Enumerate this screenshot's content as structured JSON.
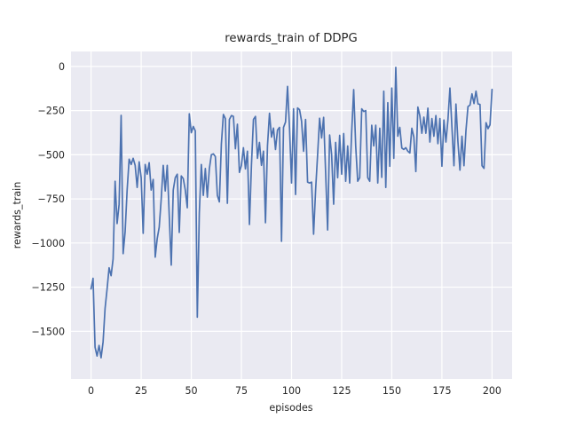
{
  "figure": {
    "background": "#ffffff"
  },
  "chart_data": {
    "type": "line",
    "title": "rewards_train of DDPG",
    "xlabel": "episodes",
    "ylabel": "rewards_train",
    "series_name": "rewards_train",
    "x_start": 0,
    "x_step": 1,
    "values": [
      -1260,
      -1200,
      -1590,
      -1640,
      -1580,
      -1650,
      -1560,
      -1370,
      -1260,
      -1140,
      -1185,
      -1090,
      -650,
      -890,
      -780,
      -277,
      -1060,
      -935,
      -700,
      -525,
      -555,
      -520,
      -560,
      -685,
      -540,
      -630,
      -945,
      -555,
      -610,
      -545,
      -700,
      -640,
      -1080,
      -975,
      -910,
      -750,
      -560,
      -705,
      -560,
      -845,
      -1125,
      -700,
      -630,
      -610,
      -940,
      -620,
      -635,
      -700,
      -800,
      -268,
      -375,
      -340,
      -365,
      -1420,
      -830,
      -555,
      -730,
      -578,
      -740,
      -580,
      -500,
      -495,
      -510,
      -730,
      -767,
      -440,
      -272,
      -295,
      -775,
      -300,
      -278,
      -283,
      -466,
      -327,
      -600,
      -560,
      -460,
      -580,
      -480,
      -895,
      -560,
      -300,
      -283,
      -520,
      -430,
      -560,
      -480,
      -885,
      -450,
      -265,
      -400,
      -349,
      -470,
      -360,
      -345,
      -990,
      -345,
      -315,
      -113,
      -350,
      -660,
      -240,
      -725,
      -235,
      -245,
      -310,
      -480,
      -300,
      -655,
      -660,
      -655,
      -950,
      -700,
      -500,
      -293,
      -405,
      -288,
      -600,
      -926,
      -388,
      -500,
      -780,
      -430,
      -630,
      -390,
      -610,
      -380,
      -650,
      -450,
      -660,
      -370,
      -131,
      -450,
      -650,
      -630,
      -240,
      -255,
      -250,
      -630,
      -650,
      -333,
      -450,
      -333,
      -660,
      -350,
      -628,
      -140,
      -685,
      -205,
      -565,
      -122,
      -520,
      -5,
      -395,
      -345,
      -462,
      -470,
      -460,
      -480,
      -490,
      -350,
      -400,
      -595,
      -230,
      -280,
      -378,
      -287,
      -378,
      -236,
      -428,
      -295,
      -395,
      -278,
      -437,
      -295,
      -565,
      -303,
      -428,
      -303,
      -122,
      -345,
      -562,
      -213,
      -428,
      -587,
      -395,
      -562,
      -362,
      -227,
      -219,
      -155,
      -210,
      -140,
      -212,
      -215,
      -562,
      -577,
      -318,
      -352,
      -330,
      -130
    ],
    "xticks": [
      0,
      25,
      50,
      75,
      100,
      125,
      150,
      175,
      200
    ],
    "yticks": [
      0,
      -250,
      -500,
      -750,
      -1000,
      -1250,
      -1500
    ],
    "xlim": [
      -10,
      210
    ],
    "ylim": [
      -1770,
      85
    ],
    "grid": true,
    "legend_position": "none",
    "line_color": "#4c72b0",
    "axes_background": "#eaeaf2",
    "grid_color": "#ffffff",
    "text_color": "#262626"
  }
}
